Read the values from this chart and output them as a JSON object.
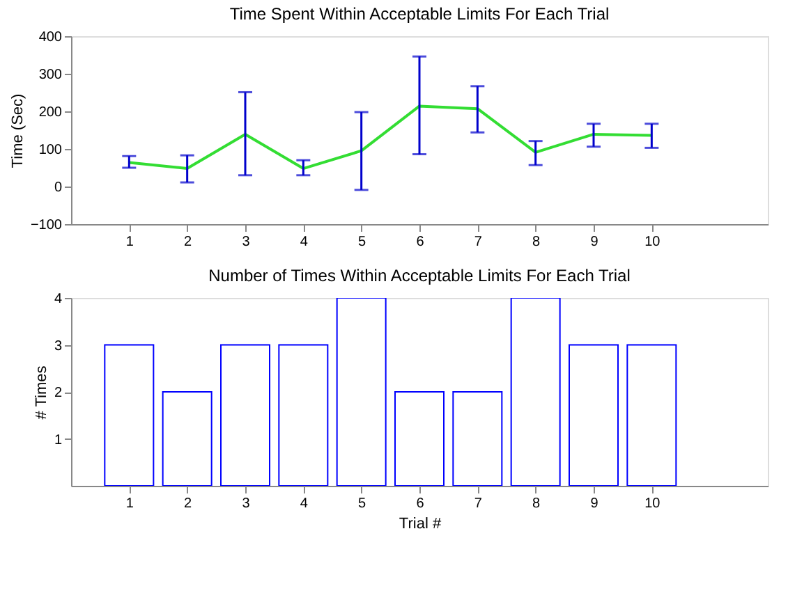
{
  "chart_data": [
    {
      "type": "line",
      "title": "Time Spent Within Acceptable Limits For Each Trial",
      "ylabel": "Time (Sec)",
      "x": [
        1,
        2,
        3,
        4,
        5,
        6,
        7,
        8,
        9,
        10
      ],
      "series": [
        {
          "color": "#33dd33",
          "values": [
            64,
            48,
            139,
            48,
            95,
            214,
            207,
            91,
            139,
            136
          ],
          "errors": [
            [
              50,
              81
            ],
            [
              11,
              83
            ],
            [
              30,
              251
            ],
            [
              30,
              70
            ],
            [
              -9,
              198
            ],
            [
              86,
              346
            ],
            [
              144,
              267
            ],
            [
              57,
              121
            ],
            [
              106,
              167
            ],
            [
              103,
              167
            ]
          ]
        }
      ],
      "xlim": [
        0,
        12
      ],
      "xticks": [
        1,
        2,
        3,
        4,
        5,
        6,
        7,
        8,
        9,
        10
      ],
      "ylim": [
        -100,
        400
      ],
      "yticks": [
        -100,
        0,
        100,
        200,
        300,
        400
      ],
      "grid": false
    },
    {
      "type": "bar",
      "title": "Number of Times Within Acceptable Limits For Each Trial",
      "xlabel": "Trial #",
      "ylabel": "# Times",
      "x": [
        1,
        2,
        3,
        4,
        5,
        6,
        7,
        8,
        9,
        10
      ],
      "series": [
        {
          "color": "#0000ff",
          "values": [
            3,
            2,
            3,
            3,
            4,
            2,
            2,
            4,
            3,
            3
          ]
        }
      ],
      "xlim": [
        0,
        12
      ],
      "xticks": [
        1,
        2,
        3,
        4,
        5,
        6,
        7,
        8,
        9,
        10
      ],
      "ylim": [
        0,
        4
      ],
      "yticks": [
        1,
        2,
        3,
        4
      ],
      "grid": false
    }
  ]
}
